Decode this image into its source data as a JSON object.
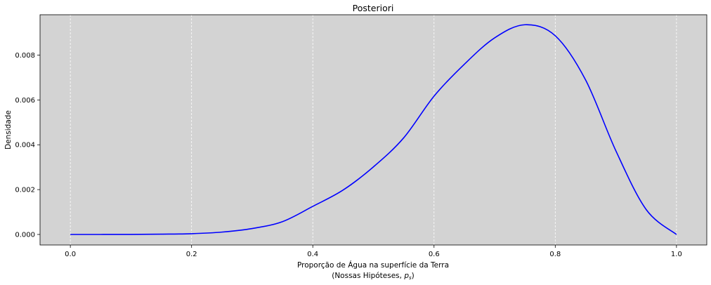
{
  "chart_data": {
    "type": "line",
    "title": "Posteriori",
    "xlabel": "Proporção de Água na superfície da Terra",
    "xlabel_line2_prefix": "(Nossas Hipóteses, ",
    "xlabel_line2_var": "p",
    "xlabel_line2_sub": "s",
    "xlabel_line2_suffix": ")",
    "ylabel": "Densidade",
    "xlim": [
      -0.05,
      1.05
    ],
    "ylim": [
      -0.00047,
      0.0098
    ],
    "xticks": [
      0.0,
      0.2,
      0.4,
      0.6,
      0.8,
      1.0
    ],
    "xtick_labels": [
      "0.0",
      "0.2",
      "0.4",
      "0.6",
      "0.8",
      "1.0"
    ],
    "yticks": [
      0.0,
      0.002,
      0.004,
      0.006,
      0.008
    ],
    "ytick_labels": [
      "0.000",
      "0.002",
      "0.004",
      "0.006",
      "0.008"
    ],
    "grid": "vertical dashed",
    "background_color": "#d3d3d3",
    "grid_color": "#ffffff",
    "series": [
      {
        "color": "#0000ff",
        "x": [
          0.0,
          0.05,
          0.1,
          0.15,
          0.2,
          0.25,
          0.3,
          0.35,
          0.4,
          0.45,
          0.5,
          0.55,
          0.6,
          0.65,
          0.7,
          0.75,
          0.8,
          0.85,
          0.9,
          0.95,
          1.0
        ],
        "y": [
          0.0,
          1e-07,
          2.8e-06,
          1.26e-05,
          3.34e-05,
          0.000105,
          0.000265,
          0.000573,
          0.001254,
          0.001981,
          0.003014,
          0.004311,
          0.006169,
          0.007592,
          0.008769,
          0.009354,
          0.008863,
          0.006895,
          0.003732,
          0.001112,
          0.0
        ]
      }
    ]
  }
}
